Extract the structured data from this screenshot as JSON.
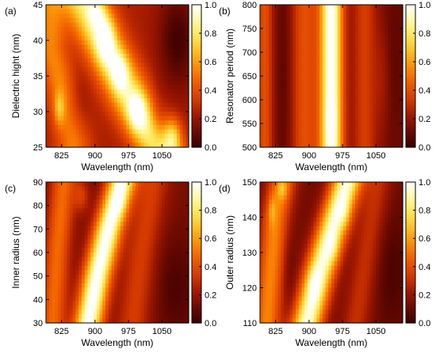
{
  "figure": {
    "background": "#ffffff"
  },
  "colormap": [
    "#3a0000",
    "#6b0a00",
    "#a01800",
    "#d43a00",
    "#ee5a00",
    "#fa8a05",
    "#ffbb22",
    "#ffe455",
    "#fff9a6",
    "#ffffff"
  ],
  "chart_data": [
    {
      "type": "heatmap",
      "panel": "(a)",
      "xlabel": "Wavelength (nm)",
      "ylabel": "Dielectric hight (nm)",
      "xlim": [
        790,
        1110
      ],
      "ylim": [
        25,
        45
      ],
      "xticks": [
        "825",
        "900",
        "975",
        "1050"
      ],
      "xtick_values": [
        825,
        900,
        975,
        1050
      ],
      "yticks": [
        "25",
        "30",
        "35",
        "40",
        "45"
      ],
      "ytick_values": [
        25,
        30,
        35,
        40,
        45
      ],
      "colorbar": {
        "range": [
          0,
          1
        ],
        "ticks": [
          "0.0",
          "0.2",
          "0.4",
          "0.6",
          "0.8",
          "1.0"
        ],
        "tick_values": [
          0,
          0.2,
          0.4,
          0.6,
          0.8,
          1.0
        ]
      },
      "z_model": {
        "base": 0.24,
        "ridges": [
          {
            "points": [
              [
                880,
                45
              ],
              [
                915,
                40
              ],
              [
                955,
                35
              ],
              [
                995,
                30
              ],
              [
                1040,
                25
              ]
            ],
            "width": 35,
            "amplitude": 0.62
          },
          {
            "points": [
              [
                800,
                39
              ],
              [
                830,
                32
              ],
              [
                850,
                26
              ]
            ],
            "width": 26,
            "amplitude": 0.3
          }
        ],
        "peaks": [
          {
            "x": 925,
            "y": 40,
            "sx": 14,
            "sy": 2.2,
            "amplitude": 0.38
          },
          {
            "x": 955,
            "y": 35.5,
            "sx": 13,
            "sy": 1.8,
            "amplitude": 0.32
          },
          {
            "x": 995,
            "y": 30,
            "sx": 14,
            "sy": 1.8,
            "amplitude": 0.34
          },
          {
            "x": 905,
            "y": 44,
            "sx": 14,
            "sy": 1.6,
            "amplitude": 0.22
          },
          {
            "x": 1075,
            "y": 26.5,
            "sx": 14,
            "sy": 1.8,
            "amplitude": 0.36
          },
          {
            "x": 820,
            "y": 30.5,
            "sx": 8,
            "sy": 1.6,
            "amplitude": 0.25
          }
        ],
        "valleys": [
          {
            "x": 1085,
            "y": 40,
            "sx": 30,
            "sy": 5,
            "amplitude": 0.22
          },
          {
            "x": 860,
            "y": 31,
            "sx": 18,
            "sy": 3,
            "amplitude": 0.1
          },
          {
            "x": 1040,
            "y": 28,
            "sx": 14,
            "sy": 3,
            "amplitude": 0.12
          }
        ]
      }
    },
    {
      "type": "heatmap",
      "panel": "(b)",
      "xlabel": "Wavelength (nm)",
      "ylabel": "Resonator period (nm)",
      "xlim": [
        790,
        1110
      ],
      "ylim": [
        500,
        800
      ],
      "xticks": [
        "825",
        "900",
        "975",
        "1050"
      ],
      "xtick_values": [
        825,
        900,
        975,
        1050
      ],
      "yticks": [
        "500",
        "550",
        "600",
        "650",
        "700",
        "750",
        "800"
      ],
      "ytick_values": [
        500,
        550,
        600,
        650,
        700,
        750,
        800
      ],
      "colorbar": {
        "range": [
          0,
          1
        ],
        "ticks": [
          "0.0",
          "0.2",
          "0.4",
          "0.6",
          "0.8",
          "1.0"
        ],
        "tick_values": [
          0,
          0.2,
          0.4,
          0.6,
          0.8,
          1.0
        ]
      },
      "z_model": {
        "base": 0.12,
        "ridges": [
          {
            "points": [
              [
                950,
                800
              ],
              [
                950,
                500
              ]
            ],
            "width": 18,
            "amplitude": 0.9
          },
          {
            "points": [
              [
                890,
                800
              ],
              [
                890,
                500
              ]
            ],
            "width": 22,
            "amplitude": 0.28
          },
          {
            "points": [
              [
                1025,
                800
              ],
              [
                1025,
                500
              ]
            ],
            "width": 20,
            "amplitude": 0.22
          },
          {
            "points": [
              [
                800,
                800
              ],
              [
                800,
                500
              ]
            ],
            "width": 14,
            "amplitude": 0.28
          }
        ],
        "peaks": [
          {
            "x": 950,
            "y": 560,
            "sx": 8,
            "sy": 30,
            "amplitude": 0.12
          },
          {
            "x": 1065,
            "y": 650,
            "sx": 12,
            "sy": 90,
            "amplitude": 0.1
          }
        ],
        "valleys": [
          {
            "x": 845,
            "y": 650,
            "sx": 12,
            "sy": 200,
            "amplitude": 0.06
          },
          {
            "x": 1085,
            "y": 700,
            "sx": 20,
            "sy": 120,
            "amplitude": 0.04
          }
        ]
      }
    },
    {
      "type": "heatmap",
      "panel": "(c)",
      "xlabel": "Wavelength (nm)",
      "ylabel": "Inner radius (nm)",
      "xlim": [
        790,
        1110
      ],
      "ylim": [
        30,
        90
      ],
      "xticks": [
        "825",
        "900",
        "975",
        "1050"
      ],
      "xtick_values": [
        825,
        900,
        975,
        1050
      ],
      "yticks": [
        "30",
        "40",
        "50",
        "60",
        "70",
        "80",
        "90"
      ],
      "ytick_values": [
        30,
        40,
        50,
        60,
        70,
        80,
        90
      ],
      "colorbar": {
        "range": [
          0,
          1
        ],
        "ticks": [
          "0.0",
          "0.2",
          "0.4",
          "0.6",
          "0.8",
          "1.0"
        ],
        "tick_values": [
          0,
          0.2,
          0.4,
          0.6,
          0.8,
          1.0
        ]
      },
      "z_model": {
        "base": 0.14,
        "ridges": [
          {
            "points": [
              [
                885,
                30
              ],
              [
                905,
                50
              ],
              [
                930,
                70
              ],
              [
                960,
                90
              ]
            ],
            "width": 22,
            "amplitude": 0.88
          },
          {
            "points": [
              [
                805,
                30
              ],
              [
                815,
                60
              ],
              [
                830,
                90
              ]
            ],
            "width": 20,
            "amplitude": 0.34
          },
          {
            "points": [
              [
                985,
                30
              ],
              [
                1005,
                60
              ],
              [
                1030,
                90
              ]
            ],
            "width": 26,
            "amplitude": 0.2
          }
        ],
        "peaks": [
          {
            "x": 955,
            "y": 82,
            "sx": 10,
            "sy": 4,
            "amplitude": 0.12
          },
          {
            "x": 870,
            "y": 84,
            "sx": 12,
            "sy": 5,
            "amplitude": 0.18
          }
        ],
        "valleys": [
          {
            "x": 1080,
            "y": 45,
            "sx": 30,
            "sy": 15,
            "amplitude": 0.1
          }
        ]
      }
    },
    {
      "type": "heatmap",
      "panel": "(d)",
      "xlabel": "Wavelength (nm)",
      "ylabel": "Outer radius (nm)",
      "xlim": [
        790,
        1110
      ],
      "ylim": [
        110,
        150
      ],
      "xticks": [
        "825",
        "900",
        "975",
        "1050"
      ],
      "xtick_values": [
        825,
        900,
        975,
        1050
      ],
      "yticks": [
        "110",
        "120",
        "130",
        "140",
        "150"
      ],
      "ytick_values": [
        110,
        120,
        130,
        140,
        150
      ],
      "colorbar": {
        "range": [
          0,
          1
        ],
        "ticks": [
          "0.0",
          "0.2",
          "0.4",
          "0.6",
          "0.8",
          "1.0"
        ],
        "tick_values": [
          0,
          0.2,
          0.4,
          0.6,
          0.8,
          1.0
        ]
      },
      "z_model": {
        "base": 0.12,
        "ridges": [
          {
            "points": [
              [
                895,
                110
              ],
              [
                925,
                125
              ],
              [
                960,
                140
              ],
              [
                985,
                150
              ]
            ],
            "width": 24,
            "amplitude": 0.85
          },
          {
            "points": [
              [
                805,
                110
              ],
              [
                825,
                140
              ],
              [
                840,
                150
              ]
            ],
            "width": 22,
            "amplitude": 0.42
          },
          {
            "points": [
              [
                1005,
                110
              ],
              [
                1030,
                130
              ],
              [
                1055,
                150
              ]
            ],
            "width": 22,
            "amplitude": 0.18
          }
        ],
        "peaks": [
          {
            "x": 910,
            "y": 121,
            "sx": 10,
            "sy": 3,
            "amplitude": 0.12
          },
          {
            "x": 955,
            "y": 131,
            "sx": 10,
            "sy": 3,
            "amplitude": 0.1
          },
          {
            "x": 980,
            "y": 141,
            "sx": 10,
            "sy": 3,
            "amplitude": 0.12
          },
          {
            "x": 840,
            "y": 148,
            "sx": 8,
            "sy": 2,
            "amplitude": 0.18
          },
          {
            "x": 817,
            "y": 142,
            "sx": 6,
            "sy": 3,
            "amplitude": 0.15
          }
        ],
        "valleys": [
          {
            "x": 855,
            "y": 125,
            "sx": 12,
            "sy": 8,
            "amplitude": 0.06
          },
          {
            "x": 1085,
            "y": 125,
            "sx": 25,
            "sy": 12,
            "amplitude": 0.08
          }
        ]
      }
    }
  ]
}
